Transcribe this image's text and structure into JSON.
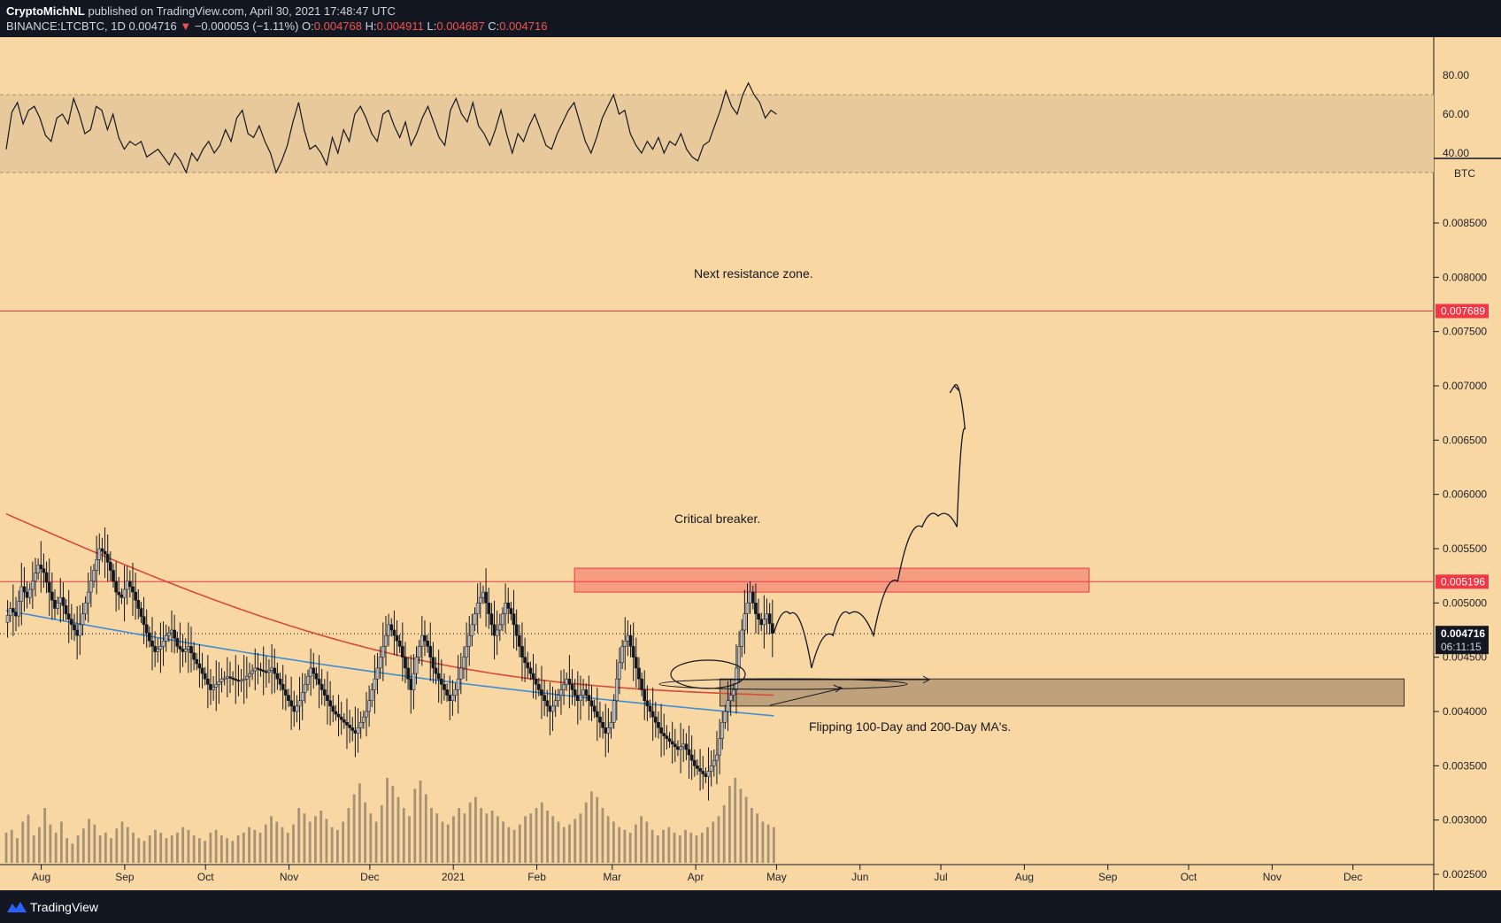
{
  "header": {
    "author": "CryptoMichNL",
    "published": "published on TradingView.com, April 30, 2021 17:48:47 UTC",
    "symbol": "BINANCE:LTCBTC, 1D",
    "last": "0.004716",
    "change": "−0.000053 (−1.11%)",
    "o_label": "O:",
    "o": "0.004768",
    "h_label": "H:",
    "h": "0.004911",
    "l_label": "L:",
    "l": "0.004687",
    "c_label": "C:",
    "c": "0.004716"
  },
  "footer": {
    "brand": "TradingView"
  },
  "colors": {
    "background": "#f8d7a3",
    "frame": "#131722",
    "resistance": "#f23645",
    "ma200": "#d84a3a",
    "ma100": "#3f8fd6",
    "last_price": "#131722",
    "rsi_band": "#e8c99b",
    "support_zone": "#bfa27b"
  },
  "chart_data": [
    {
      "type": "line",
      "title": "",
      "indicator": "oscillator",
      "yticks": [
        "80.00",
        "60.00",
        "40.00"
      ],
      "ylim": [
        25,
        82
      ],
      "band": [
        30,
        70
      ],
      "x_range": [
        "2020-07-19",
        "2020-12-31"
      ],
      "x_range_end": "2021-05-01",
      "values": [
        42,
        61,
        66,
        55,
        62,
        64,
        58,
        49,
        46,
        58,
        60,
        55,
        68,
        60,
        50,
        52,
        64,
        62,
        52,
        60,
        48,
        42,
        46,
        44,
        46,
        38,
        40,
        42,
        38,
        34,
        40,
        36,
        30,
        40,
        36,
        42,
        46,
        40,
        44,
        52,
        46,
        58,
        62,
        50,
        48,
        54,
        46,
        40,
        30,
        36,
        44,
        56,
        66,
        52,
        42,
        44,
        40,
        34,
        48,
        40,
        52,
        46,
        60,
        64,
        58,
        50,
        46,
        60,
        62,
        54,
        48,
        56,
        44,
        50,
        58,
        64,
        56,
        48,
        44,
        62,
        68,
        60,
        56,
        66,
        54,
        50,
        44,
        52,
        62,
        50,
        40,
        50,
        46,
        54,
        60,
        52,
        44,
        42,
        50,
        56,
        62,
        66,
        56,
        46,
        40,
        48,
        58,
        64,
        70,
        60,
        62,
        50,
        44,
        40,
        46,
        42,
        48,
        40,
        46,
        44,
        50,
        42,
        38,
        36,
        44,
        46,
        54,
        62,
        72,
        64,
        60,
        70,
        76,
        70,
        66,
        58,
        62,
        60
      ]
    },
    {
      "type": "line",
      "title": "",
      "unit": "BTC",
      "yticks": [
        "0.008500",
        "0.008000",
        "0.007500",
        "0.007000",
        "0.006500",
        "0.006000",
        "0.005500",
        "0.005000",
        "0.004500",
        "0.004000",
        "0.003500",
        "0.003000",
        "0.002500"
      ],
      "ylim": [
        0.0025,
        0.0091
      ],
      "xticks": [
        "Aug",
        "Sep",
        "Oct",
        "Nov",
        "Dec",
        "2021",
        "Feb",
        "Mar",
        "Apr",
        "May",
        "Jun",
        "Jul",
        "Aug",
        "Sep",
        "Oct",
        "Nov",
        "Dec"
      ],
      "grid": false,
      "price_series": {
        "name": "",
        "start": "2020-07-19",
        "end": "2021-04-30",
        "close": [
          0.00482,
          0.00495,
          0.00488,
          0.00515,
          0.00505,
          0.0052,
          0.00535,
          0.00528,
          0.0051,
          0.00495,
          0.00505,
          0.0049,
          0.0048,
          0.0047,
          0.0049,
          0.0051,
          0.0053,
          0.0055,
          0.00545,
          0.0053,
          0.0051,
          0.00505,
          0.0052,
          0.0051,
          0.00495,
          0.0048,
          0.00465,
          0.00455,
          0.0046,
          0.0047,
          0.00475,
          0.0046,
          0.00455,
          0.0046,
          0.00448,
          0.0044,
          0.0043,
          0.0042,
          0.00425,
          0.0043,
          0.00432,
          0.0043,
          0.00428,
          0.0043,
          0.00435,
          0.0044,
          0.00438,
          0.00436,
          0.0044,
          0.0043,
          0.0042,
          0.0041,
          0.004,
          0.0041,
          0.00425,
          0.0044,
          0.0043,
          0.0042,
          0.0041,
          0.004,
          0.00395,
          0.0039,
          0.00385,
          0.0038,
          0.0039,
          0.004,
          0.0042,
          0.0044,
          0.0046,
          0.0048,
          0.0047,
          0.0046,
          0.0044,
          0.0042,
          0.0045,
          0.0047,
          0.0046,
          0.0044,
          0.0043,
          0.0042,
          0.0041,
          0.0042,
          0.0044,
          0.0046,
          0.0048,
          0.005,
          0.0051,
          0.0049,
          0.0047,
          0.0048,
          0.005,
          0.0049,
          0.0047,
          0.0045,
          0.0044,
          0.0043,
          0.0042,
          0.0041,
          0.004,
          0.0041,
          0.0042,
          0.0043,
          0.0042,
          0.0041,
          0.0042,
          0.0041,
          0.004,
          0.0039,
          0.0038,
          0.0039,
          0.0043,
          0.0046,
          0.0047,
          0.0045,
          0.0043,
          0.0041,
          0.004,
          0.0039,
          0.0038,
          0.00375,
          0.0037,
          0.00365,
          0.0037,
          0.0036,
          0.0035,
          0.00345,
          0.0034,
          0.0035,
          0.0036,
          0.0039,
          0.0041,
          0.0042,
          0.0046,
          0.0049,
          0.0051,
          0.0049,
          0.0048,
          0.0049,
          0.00472
        ]
      },
      "ma200": {
        "name": "",
        "start_value": 0.00582,
        "end_value": 0.00415
      },
      "ma100": {
        "name": "",
        "start_value": 0.00493,
        "end_value": 0.00396
      },
      "horizontal_lines": [
        {
          "price": 0.007689,
          "label": "0.007689"
        },
        {
          "price": 0.005196,
          "label": "0.005196"
        }
      ],
      "last_price": {
        "price": 0.004716,
        "label": "0.004716",
        "countdown": "06:11:15"
      },
      "zones": [
        {
          "name": "breaker",
          "from": "2021-02-15",
          "to": "2021-08-25",
          "top": 0.00532,
          "bottom": 0.0051
        },
        {
          "name": "support",
          "from": "2021-04-10",
          "to": "2021-12-20",
          "top": 0.0043,
          "bottom": 0.00405
        }
      ],
      "projection_path": [
        [
          "2021-04-30",
          0.00472
        ],
        [
          "2021-05-06",
          0.0049
        ],
        [
          "2021-05-14",
          0.0044
        ],
        [
          "2021-05-22",
          0.0047
        ],
        [
          "2021-05-28",
          0.0049
        ],
        [
          "2021-06-06",
          0.0047
        ],
        [
          "2021-06-15",
          0.0052
        ],
        [
          "2021-06-24",
          0.0057
        ],
        [
          "2021-06-30",
          0.0058
        ],
        [
          "2021-07-07",
          0.0057
        ],
        [
          "2021-07-10",
          0.0066
        ],
        [
          "2021-07-06",
          0.007
        ]
      ],
      "annotations": [
        "Next resistance zone.",
        "Critical breaker.",
        "Flipping 100-Day and 200-Day MA's."
      ],
      "volume": [
        22,
        24,
        18,
        30,
        35,
        20,
        26,
        40,
        28,
        22,
        30,
        18,
        14,
        20,
        25,
        32,
        28,
        20,
        22,
        18,
        25,
        30,
        26,
        22,
        18,
        16,
        20,
        24,
        22,
        18,
        20,
        22,
        26,
        24,
        20,
        18,
        16,
        22,
        24,
        20,
        18,
        16,
        20,
        22,
        26,
        24,
        22,
        28,
        34,
        30,
        26,
        22,
        28,
        40,
        36,
        30,
        34,
        38,
        32,
        26,
        24,
        30,
        40,
        50,
        58,
        44,
        36,
        30,
        42,
        62,
        56,
        48,
        40,
        34,
        54,
        60,
        50,
        40,
        36,
        30,
        28,
        34,
        40,
        36,
        44,
        48,
        40,
        36,
        38,
        34,
        30,
        26,
        24,
        28,
        34,
        36,
        40,
        44,
        38,
        34,
        30,
        26,
        28,
        32,
        36,
        44,
        52,
        48,
        40,
        34,
        30,
        26,
        24,
        22,
        28,
        34,
        30,
        24,
        20,
        24,
        26,
        22,
        20,
        24,
        22,
        20,
        22,
        26,
        30,
        34,
        42,
        56,
        62,
        54,
        48,
        40,
        36,
        30,
        28,
        26
      ]
    }
  ]
}
